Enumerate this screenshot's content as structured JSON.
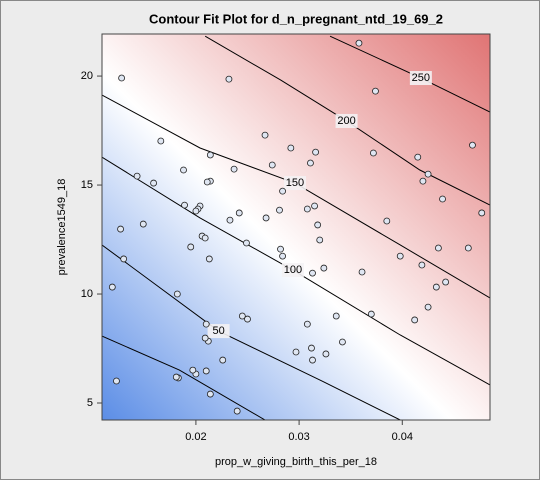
{
  "chart_data": {
    "type": "contour",
    "title": "Contour Fit Plot for d_n_pregnant_ntd_19_69_2",
    "x_label": "prop_w_giving_birth_this_per_18",
    "y_label": "prevalence1549_18",
    "xlim": [
      0.0109,
      0.0485
    ],
    "ylim": [
      4.22,
      21.93
    ],
    "xticks": [
      0.02,
      0.03,
      0.04
    ],
    "yticks": [
      5,
      10,
      15,
      20
    ],
    "grid": false,
    "low_color": "#5b8de6",
    "mid_color": "#ffffff",
    "high_color": "#e07474",
    "point_color": "#dfe6f2",
    "contours": [
      {
        "x": [
          0.0109,
          0.0184,
          0.0267
        ],
        "y": [
          8.07,
          6.51,
          4.22
        ]
      },
      {
        "level": 50,
        "x": [
          0.0109,
          0.0222,
          0.032,
          0.0398
        ],
        "y": [
          12.25,
          8.3,
          6.06,
          4.22
        ]
      },
      {
        "level": 100,
        "x": [
          0.0109,
          0.0204,
          0.0294,
          0.0398,
          0.0485
        ],
        "y": [
          16.28,
          13.49,
          11.1,
          8.12,
          5.83
        ]
      },
      {
        "level": 150,
        "x": [
          0.0109,
          0.0204,
          0.0296,
          0.0398,
          0.0485
        ],
        "y": [
          19.13,
          16.7,
          15.09,
          12.25,
          9.82
        ]
      },
      {
        "level": 200,
        "x": [
          0.0209,
          0.0282,
          0.0346,
          0.0417,
          0.0485
        ],
        "y": [
          21.83,
          19.82,
          17.94,
          15.69,
          14.08
        ]
      },
      {
        "level": 250,
        "x": [
          0.033,
          0.0418,
          0.0485
        ],
        "y": [
          21.83,
          19.91,
          18.35
        ]
      }
    ],
    "points": {
      "x": [
        0.0128,
        0.0166,
        0.0127,
        0.0143,
        0.0159,
        0.0149,
        0.0119,
        0.013,
        0.0123,
        0.0188,
        0.0189,
        0.0195,
        0.0204,
        0.0202,
        0.02,
        0.0214,
        0.0211,
        0.0214,
        0.0206,
        0.0209,
        0.0213,
        0.0182,
        0.0183,
        0.0181,
        0.021,
        0.0212,
        0.0209,
        0.021,
        0.02,
        0.0197,
        0.0214,
        0.0226,
        0.024,
        0.0232,
        0.0237,
        0.0233,
        0.0242,
        0.0249,
        0.0245,
        0.025,
        0.0267,
        0.0274,
        0.0284,
        0.0281,
        0.0282,
        0.0284,
        0.0268,
        0.0292,
        0.0297,
        0.0308,
        0.0311,
        0.0316,
        0.0315,
        0.0318,
        0.032,
        0.0324,
        0.0313,
        0.0308,
        0.0312,
        0.0313,
        0.0326,
        0.0336,
        0.0342,
        0.0358,
        0.0374,
        0.0372,
        0.0385,
        0.0361,
        0.037,
        0.0398,
        0.0415,
        0.042,
        0.0425,
        0.0419,
        0.0412,
        0.0425,
        0.0433,
        0.0442,
        0.0435,
        0.0439,
        0.0464,
        0.0468,
        0.0477
      ],
      "y": [
        19.91,
        17.02,
        12.98,
        15.41,
        15.09,
        13.21,
        10.32,
        11.61,
        6.01,
        15.69,
        14.08,
        12.16,
        14.04,
        13.9,
        13.81,
        15.18,
        15.14,
        16.38,
        12.66,
        12.57,
        11.61,
        10.0,
        6.15,
        6.19,
        8.62,
        7.84,
        7.98,
        6.47,
        6.33,
        6.51,
        5.41,
        6.97,
        4.63,
        19.86,
        15.73,
        13.39,
        13.72,
        12.34,
        8.99,
        8.85,
        17.29,
        15.92,
        14.72,
        13.85,
        12.06,
        11.74,
        13.49,
        16.7,
        7.34,
        13.9,
        16.01,
        16.51,
        14.04,
        13.17,
        12.48,
        11.19,
        10.96,
        8.62,
        7.52,
        6.97,
        7.25,
        8.99,
        7.8,
        21.51,
        19.31,
        16.47,
        13.35,
        11.01,
        9.08,
        11.74,
        16.28,
        15.18,
        15.5,
        11.33,
        8.81,
        9.4,
        10.32,
        10.55,
        12.11,
        14.36,
        12.11,
        16.83,
        13.72
      ]
    }
  }
}
